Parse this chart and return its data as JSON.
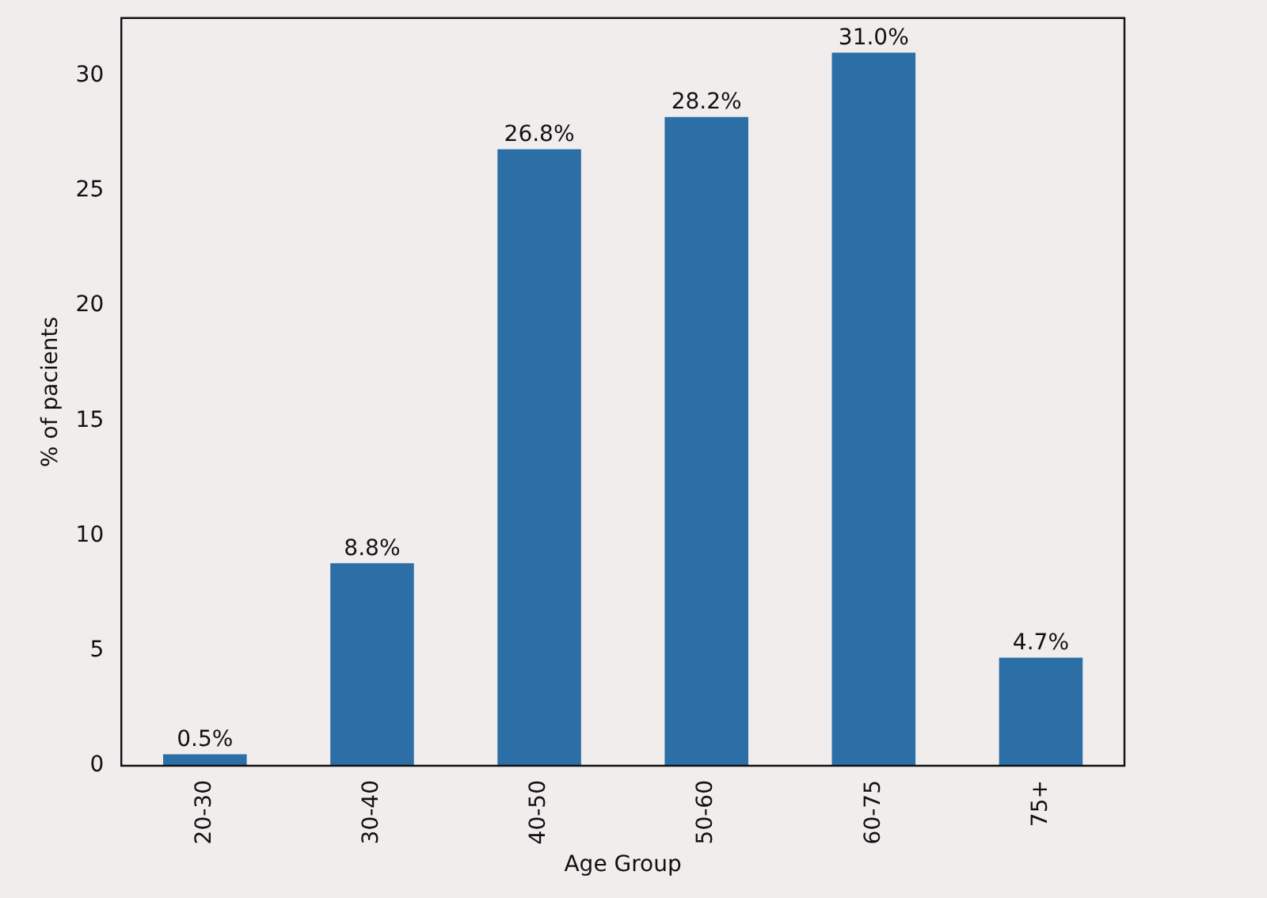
{
  "chart_data": {
    "type": "bar",
    "xlabel": "Age Group",
    "ylabel": "% of pacients",
    "categories": [
      "20-30",
      "30-40",
      "40-50",
      "50-60",
      "60-75",
      "75+"
    ],
    "values": [
      0.5,
      8.8,
      26.8,
      28.2,
      31.0,
      4.7
    ],
    "value_labels": [
      "0.5%",
      "8.8%",
      "26.8%",
      "28.2%",
      "31.0%",
      "4.7%"
    ],
    "color": "#2b6fa6",
    "ylim": [
      0,
      32.5
    ],
    "yticks": [
      0,
      5,
      10,
      15,
      20,
      25,
      30
    ],
    "grid": false,
    "legend": false
  }
}
